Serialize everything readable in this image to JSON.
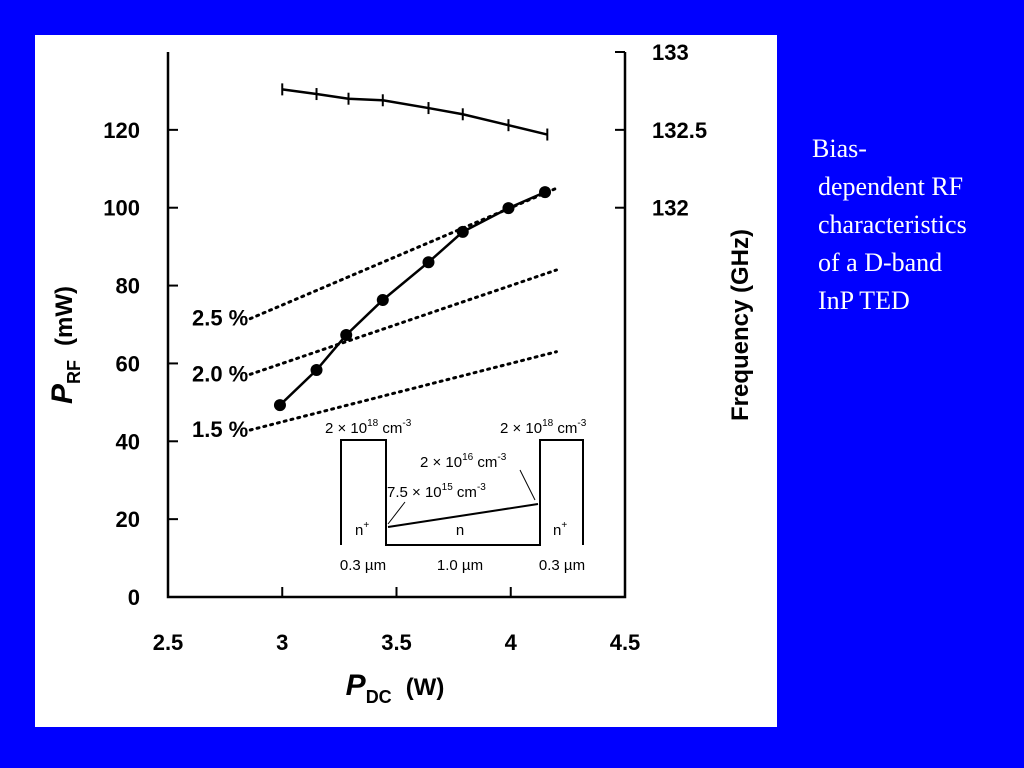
{
  "chart_data": {
    "type": "line",
    "x_label": [
      "P",
      "DC",
      "(W)"
    ],
    "y_label": [
      "P",
      "RF",
      "(mW)"
    ],
    "y2_label": "Frequency (GHz)",
    "xlim": [
      2.5,
      4.5
    ],
    "xticks": [
      2.5,
      3,
      3.5,
      4,
      4.5
    ],
    "ylim": [
      0,
      140
    ],
    "yticks": [
      0,
      20,
      40,
      60,
      80,
      100,
      120
    ],
    "y2lim": [
      129.5,
      133
    ],
    "y2ticks": [
      132,
      132.5,
      133
    ],
    "series": [
      {
        "color": "#000000",
        "marker": "plus",
        "dashed": false,
        "axis": "y2",
        "x": [
          3.0,
          3.15,
          3.29,
          3.44,
          3.64,
          3.79,
          3.99,
          4.16
        ],
        "values": [
          132.76,
          132.73,
          132.7,
          132.69,
          132.64,
          132.6,
          132.53,
          132.47
        ]
      },
      {
        "color": "#000000",
        "marker": "circle",
        "dashed": false,
        "x": [
          2.99,
          3.15,
          3.28,
          3.44,
          3.64,
          3.79,
          3.99,
          4.15
        ],
        "values": [
          49.3,
          58.3,
          67.3,
          76.3,
          86.0,
          93.8,
          99.9,
          104.0
        ]
      },
      {
        "name": "2.5 %",
        "color": "#000000",
        "marker": "none",
        "dashed": true,
        "x": [
          2.86,
          4.2
        ],
        "values": [
          71.5,
          105
        ]
      },
      {
        "name": "2.0 %",
        "color": "#000000",
        "marker": "none",
        "dashed": true,
        "x": [
          2.86,
          4.2
        ],
        "values": [
          57.2,
          84
        ]
      },
      {
        "name": "1.5 %",
        "color": "#000000",
        "marker": "none",
        "dashed": true,
        "x": [
          2.86,
          4.2
        ],
        "values": [
          42.9,
          63
        ]
      }
    ]
  },
  "inset": {
    "left_doping": [
      "2 × 10",
      "18",
      " cm",
      "-3"
    ],
    "right_doping": [
      "2 × 10",
      "18",
      " cm",
      "-3"
    ],
    "mid_high": [
      "2 × 10",
      "16",
      " cm",
      "-3"
    ],
    "mid_low": [
      "7.5 × 10",
      "15",
      " cm",
      "-3"
    ],
    "left_region": [
      "n",
      "+"
    ],
    "mid_region": "n",
    "right_region": [
      "n",
      "+"
    ],
    "widths": [
      "0.3 µm",
      "1.0 µm",
      "0.3 µm"
    ]
  },
  "caption": [
    "Bias-",
    "dependent RF",
    "characteristics",
    "of a D-band",
    "InP TED"
  ]
}
